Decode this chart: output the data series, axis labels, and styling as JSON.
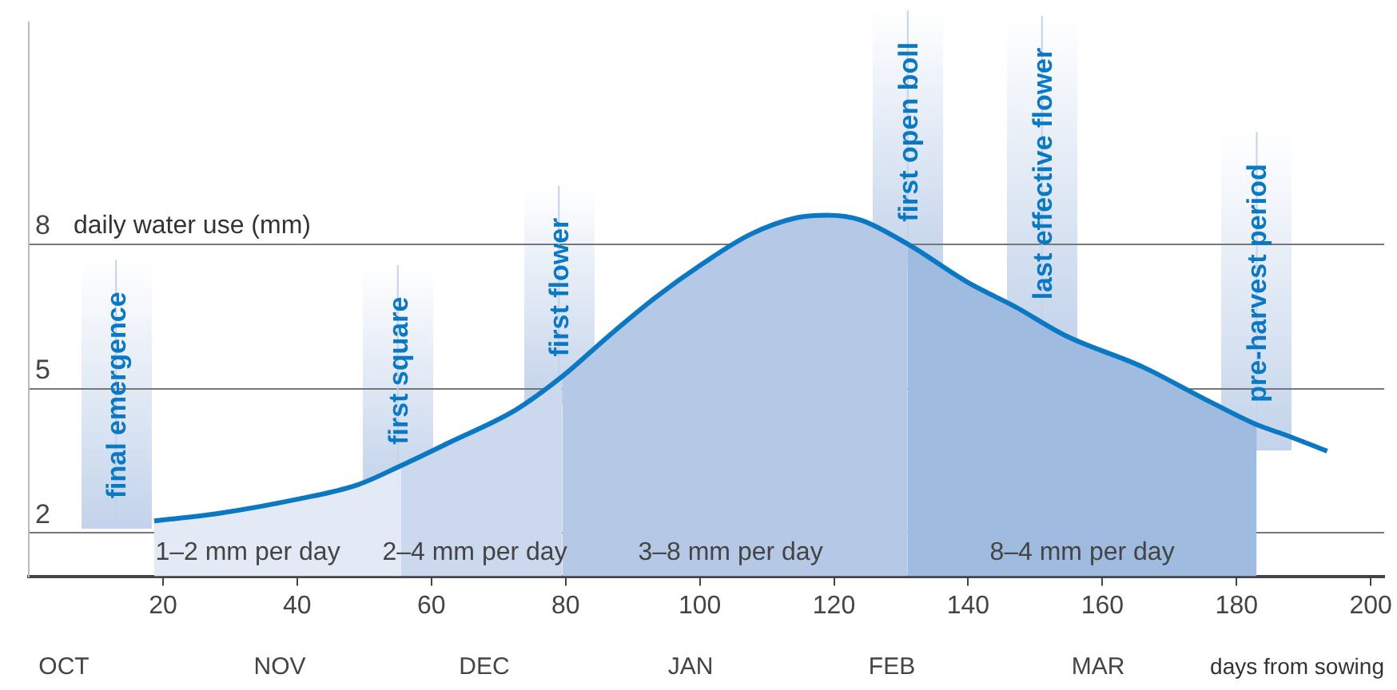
{
  "chart_data": {
    "type": "area",
    "xlabel": "days from sowing",
    "ylabel": "daily water use (mm)",
    "xlim": [
      0,
      202
    ],
    "xticks": [
      20,
      40,
      60,
      80,
      100,
      120,
      140,
      160,
      180,
      200
    ],
    "ylim": [
      1.1,
      12.6
    ],
    "yticks": [
      2,
      5,
      8
    ],
    "grid": "y",
    "series": [
      {
        "color": "#e3eaf5",
        "x": [
          18.7,
          28,
          40,
          49,
          55.5
        ],
        "values": [
          2.25,
          2.4,
          2.7,
          3.0,
          3.4
        ]
      },
      {
        "color": "#cbd8ed",
        "x": [
          55.5,
          63,
          72.5,
          79.5
        ],
        "values": [
          3.4,
          3.9,
          4.55,
          5.25
        ]
      },
      {
        "color": "#b5c9e6",
        "x": [
          79.5,
          86.5,
          93.5,
          100.5,
          107.5,
          114.5,
          119,
          124,
          131
        ],
        "values": [
          5.25,
          6.1,
          6.9,
          7.6,
          8.2,
          8.55,
          8.6,
          8.5,
          8.0
        ]
      },
      {
        "color": "#9fbbdf",
        "x": [
          131,
          140,
          147,
          154.5,
          166,
          175,
          183
        ],
        "values": [
          8.0,
          7.2,
          6.7,
          6.1,
          5.45,
          4.8,
          4.25
        ]
      },
      {
        "type": "line",
        "color": "#0a78c2",
        "x": [
          18.7,
          28,
          40,
          49,
          55.5,
          63,
          72.5,
          79.5,
          86.5,
          93.5,
          100.5,
          107.5,
          114.5,
          119,
          124,
          131,
          140,
          147,
          154.5,
          166,
          175,
          183,
          187,
          193.5
        ],
        "values": [
          2.25,
          2.4,
          2.7,
          3.0,
          3.4,
          3.9,
          4.55,
          5.25,
          6.1,
          6.9,
          7.6,
          8.2,
          8.55,
          8.6,
          8.5,
          8.0,
          7.2,
          6.7,
          6.1,
          5.45,
          4.8,
          4.25,
          4.05,
          3.7
        ]
      }
    ],
    "ref_lines": [
      {
        "axis": "x",
        "value": 13,
        "label": "final emergence"
      },
      {
        "axis": "x",
        "value": 55,
        "label": "first square"
      },
      {
        "axis": "x",
        "value": 79,
        "label": "first flower"
      },
      {
        "axis": "x",
        "value": 131,
        "label": "first open boll"
      },
      {
        "axis": "x",
        "value": 151,
        "label": "last effective flower"
      },
      {
        "axis": "x",
        "value": 183,
        "label": "pre-harvest period"
      }
    ],
    "annotations": [
      "1–2 mm per day",
      "2–4 mm per day",
      "3–8 mm per day",
      "8–4 mm per day",
      "OCT",
      "NOV",
      "DEC",
      "JAN",
      "FEB",
      "MAR"
    ]
  }
}
